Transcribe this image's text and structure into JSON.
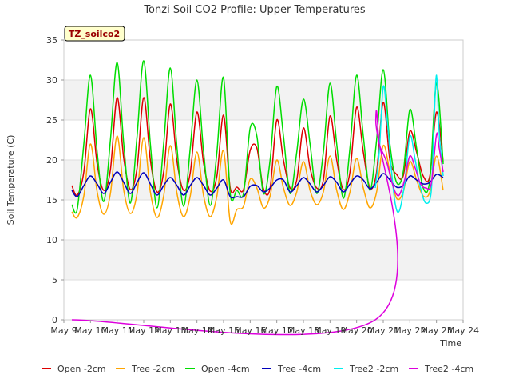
{
  "chart_data": {
    "type": "line",
    "title": "Tonzi Soil CO2 Profile: Upper Temperatures",
    "badge": "TZ_soilco2",
    "xlabel": "Time",
    "ylabel": "Soil Temperature (C)",
    "xlim": [
      9,
      24
    ],
    "ylim": [
      0,
      35
    ],
    "x_ticks": [
      {
        "v": 9,
        "label": "May 9"
      },
      {
        "v": 10,
        "label": "May 10"
      },
      {
        "v": 11,
        "label": "May 11"
      },
      {
        "v": 12,
        "label": "May 12"
      },
      {
        "v": 13,
        "label": "May 13"
      },
      {
        "v": 14,
        "label": "May 14"
      },
      {
        "v": 15,
        "label": "May 15"
      },
      {
        "v": 16,
        "label": "May 16"
      },
      {
        "v": 17,
        "label": "May 17"
      },
      {
        "v": 18,
        "label": "May 18"
      },
      {
        "v": 19,
        "label": "May 19"
      },
      {
        "v": 20,
        "label": "May 20"
      },
      {
        "v": 21,
        "label": "May 21"
      },
      {
        "v": 22,
        "label": "May 22"
      },
      {
        "v": 23,
        "label": "May 23"
      },
      {
        "v": 24,
        "label": "May 24"
      }
    ],
    "y_ticks": [
      0,
      5,
      10,
      15,
      20,
      25,
      30,
      35
    ],
    "grid": "horizontal bands",
    "legend_position": "bottom",
    "series": [
      {
        "name": "Open -2cm",
        "color": "#dd0000",
        "x": [
          9.3,
          9.5,
          9.75,
          10.0,
          10.25,
          10.5,
          10.75,
          11.0,
          11.25,
          11.5,
          11.75,
          12.0,
          12.25,
          12.5,
          12.75,
          13.0,
          13.25,
          13.5,
          13.75,
          14.0,
          14.25,
          14.5,
          14.75,
          15.0,
          15.25,
          15.5,
          15.75,
          16.0,
          16.25,
          16.5,
          16.75,
          17.0,
          17.25,
          17.5,
          17.75,
          18.0,
          18.25,
          18.5,
          18.75,
          19.0,
          19.25,
          19.5,
          19.75,
          20.0,
          20.25,
          20.5,
          20.75,
          21.0,
          21.25,
          21.5,
          21.75,
          22.0,
          22.25,
          22.5,
          22.75,
          23.0,
          23.25
        ],
        "y": [
          16.8,
          15.6,
          18.5,
          26.4,
          19.5,
          16.2,
          18.8,
          27.8,
          20.2,
          16.3,
          19.0,
          27.8,
          20.0,
          16.0,
          18.5,
          27.0,
          19.8,
          16.2,
          18.4,
          26.0,
          19.6,
          16.1,
          18.0,
          25.6,
          16.5,
          16.6,
          16.3,
          21.2,
          21.5,
          16.4,
          16.5,
          25.0,
          20.0,
          16.5,
          17.5,
          24.0,
          19.0,
          16.5,
          17.5,
          25.5,
          20.0,
          16.3,
          18.5,
          26.6,
          21.0,
          16.5,
          18.5,
          27.2,
          20.0,
          18.2,
          18.0,
          23.6,
          21.0,
          18.0,
          18.0,
          26.0,
          19.8
        ]
      },
      {
        "name": "Tree -2cm",
        "color": "#ffa500",
        "x": [
          9.3,
          9.5,
          9.75,
          10.0,
          10.25,
          10.5,
          10.75,
          11.0,
          11.25,
          11.5,
          11.75,
          12.0,
          12.25,
          12.5,
          12.75,
          13.0,
          13.25,
          13.5,
          13.75,
          14.0,
          14.25,
          14.5,
          14.75,
          15.0,
          15.25,
          15.5,
          15.75,
          16.0,
          16.25,
          16.5,
          16.75,
          17.0,
          17.25,
          17.5,
          17.75,
          18.0,
          18.25,
          18.5,
          18.75,
          19.0,
          19.25,
          19.5,
          19.75,
          20.0,
          20.25,
          20.5,
          20.75,
          21.0,
          21.25,
          21.5,
          21.75,
          22.0,
          22.25,
          22.5,
          22.75,
          23.0,
          23.25
        ],
        "y": [
          13.5,
          12.8,
          15.5,
          22.0,
          16.0,
          13.2,
          15.8,
          23.0,
          16.2,
          13.3,
          15.8,
          22.8,
          16.0,
          12.8,
          15.5,
          21.8,
          15.8,
          12.9,
          15.5,
          21.0,
          15.5,
          12.9,
          15.5,
          21.2,
          12.3,
          13.8,
          14.2,
          17.6,
          16.5,
          14.0,
          15.5,
          20.0,
          16.5,
          14.3,
          16.0,
          19.8,
          16.2,
          14.4,
          16.0,
          20.5,
          16.2,
          13.8,
          16.0,
          20.2,
          16.5,
          14.0,
          16.0,
          21.8,
          18.5,
          15.2,
          16.0,
          19.8,
          17.5,
          15.5,
          16.0,
          20.5,
          16.2
        ]
      },
      {
        "name": "Open -4cm",
        "color": "#00dd00",
        "x": [
          9.3,
          9.5,
          9.75,
          10.0,
          10.25,
          10.5,
          10.75,
          11.0,
          11.25,
          11.5,
          11.75,
          12.0,
          12.25,
          12.5,
          12.75,
          13.0,
          13.25,
          13.5,
          13.75,
          14.0,
          14.25,
          14.5,
          14.75,
          15.0,
          15.25,
          15.5,
          15.75,
          16.0,
          16.25,
          16.5,
          16.75,
          17.0,
          17.25,
          17.5,
          17.75,
          18.0,
          18.25,
          18.5,
          18.75,
          19.0,
          19.25,
          19.5,
          19.75,
          20.0,
          20.25,
          20.5,
          20.75,
          21.0,
          21.25,
          21.5,
          21.75,
          22.0,
          22.25,
          22.5,
          22.75,
          23.0,
          23.25
        ],
        "y": [
          14.4,
          13.8,
          22.0,
          30.6,
          21.0,
          14.8,
          22.5,
          32.2,
          22.0,
          14.6,
          23.0,
          32.4,
          22.0,
          14.0,
          22.0,
          31.5,
          21.5,
          14.2,
          21.5,
          30.0,
          21.0,
          14.3,
          21.0,
          30.3,
          15.8,
          16.2,
          15.8,
          24.0,
          23.0,
          15.8,
          20.0,
          29.2,
          23.0,
          15.8,
          21.0,
          27.6,
          22.0,
          15.8,
          21.0,
          29.6,
          22.0,
          15.2,
          21.5,
          30.6,
          23.0,
          16.2,
          22.5,
          31.3,
          22.0,
          17.2,
          18.5,
          26.3,
          21.5,
          16.5,
          17.5,
          29.6,
          19.5
        ]
      },
      {
        "name": "Tree -4cm",
        "color": "#0000bb",
        "x": [
          9.3,
          9.5,
          9.75,
          10.0,
          10.25,
          10.5,
          10.75,
          11.0,
          11.25,
          11.5,
          11.75,
          12.0,
          12.25,
          12.5,
          12.75,
          13.0,
          13.25,
          13.5,
          13.75,
          14.0,
          14.25,
          14.5,
          14.75,
          15.0,
          15.25,
          15.5,
          15.75,
          16.0,
          16.25,
          16.5,
          16.75,
          17.0,
          17.25,
          17.5,
          17.75,
          18.0,
          18.25,
          18.5,
          18.75,
          19.0,
          19.25,
          19.5,
          19.75,
          20.0,
          20.25,
          20.5,
          20.75,
          21.0,
          21.25,
          21.5,
          21.75,
          22.0,
          22.25,
          22.5,
          22.75,
          23.0,
          23.25
        ],
        "y": [
          16.2,
          15.4,
          16.8,
          18.0,
          17.0,
          15.8,
          17.2,
          18.5,
          17.2,
          15.8,
          17.2,
          18.4,
          17.0,
          15.6,
          16.8,
          17.8,
          16.8,
          15.6,
          16.8,
          17.8,
          16.8,
          15.6,
          16.5,
          17.5,
          15.4,
          15.4,
          15.4,
          16.7,
          16.8,
          16.0,
          16.5,
          17.5,
          17.5,
          16.0,
          16.8,
          17.8,
          17.0,
          16.0,
          16.8,
          17.9,
          17.2,
          16.0,
          17.0,
          18.0,
          17.5,
          16.4,
          17.2,
          18.3,
          17.5,
          16.6,
          16.8,
          18.0,
          17.5,
          17.0,
          17.2,
          18.2,
          17.8
        ]
      },
      {
        "name": "Tree2 -2cm",
        "color": "#00eeee",
        "x": [
          20.7,
          20.85,
          21.0,
          21.15,
          21.3,
          21.45,
          21.6,
          21.8,
          22.0,
          22.2,
          22.4,
          22.6,
          22.8,
          22.9,
          23.0,
          23.1,
          23.25
        ],
        "y": [
          16.5,
          21.0,
          29.2,
          25.0,
          19.0,
          14.5,
          13.6,
          17.0,
          23.0,
          20.0,
          16.5,
          14.6,
          16.0,
          24.0,
          30.6,
          23.5,
          18.0
        ]
      },
      {
        "name": "Tree2 -4cm",
        "color": "#dd00dd",
        "x": [
          9.3,
          20.7,
          20.72,
          20.85,
          21.0,
          21.15,
          21.3,
          21.45,
          21.6,
          21.8,
          22.0,
          22.2,
          22.4,
          22.6,
          22.8,
          23.0,
          23.1,
          23.25
        ],
        "y": [
          0.0,
          0.0,
          25.0,
          22.0,
          20.8,
          19.5,
          17.5,
          16.0,
          15.6,
          17.5,
          20.5,
          19.0,
          17.0,
          16.5,
          17.0,
          23.2,
          21.5,
          18.5
        ]
      }
    ]
  }
}
